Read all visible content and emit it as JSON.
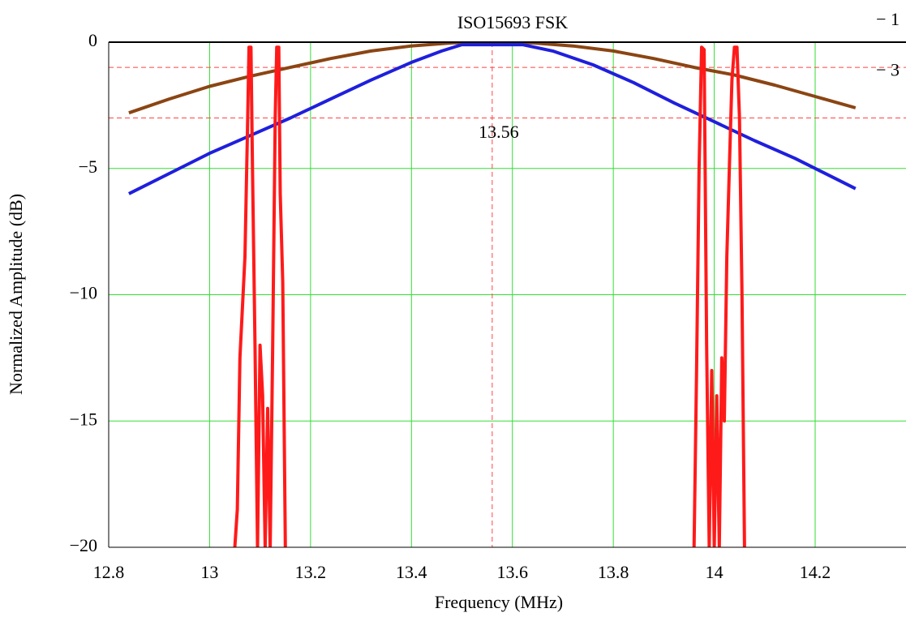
{
  "chart_data": {
    "type": "line",
    "title": "ISO15693 FSK",
    "x_label": "Frequency (MHz)",
    "y_label": "Normalized Amplitude (dB)",
    "xlim": [
      12.8,
      14.38
    ],
    "ylim": [
      -20,
      0
    ],
    "xticks": [
      12.8,
      13,
      13.2,
      13.4,
      13.6,
      13.8,
      14,
      14.2
    ],
    "yticks": [
      {
        "value": -20,
        "label": "−20"
      },
      {
        "value": -15,
        "label": "−15"
      },
      {
        "value": -10,
        "label": "−10"
      },
      {
        "value": -5,
        "label": "−5"
      },
      0
    ],
    "grid": true,
    "grid_color": "#33dd33",
    "markers": {
      "x": [
        {
          "value": 13.56,
          "label": "13.56"
        }
      ],
      "y": [
        {
          "value": -1,
          "label": "− 1"
        },
        {
          "value": -3,
          "label": "− 3"
        }
      ],
      "color": "#ff4444"
    },
    "series": [
      {
        "color": "#8b4513",
        "x": [
          12.84,
          12.92,
          13.0,
          13.08,
          13.16,
          13.24,
          13.32,
          13.4,
          13.48,
          13.56,
          13.64,
          13.72,
          13.8,
          13.88,
          13.96,
          14.04,
          14.12,
          14.2,
          14.28
        ],
        "values": [
          -2.8,
          -2.25,
          -1.75,
          -1.35,
          -1.0,
          -0.65,
          -0.35,
          -0.15,
          -0.03,
          0,
          -0.03,
          -0.15,
          -0.35,
          -0.65,
          -1.0,
          -1.3,
          -1.7,
          -2.15,
          -2.6
        ]
      },
      {
        "color": "#1f1fdd",
        "x": [
          12.84,
          12.92,
          13.0,
          13.08,
          13.16,
          13.24,
          13.32,
          13.4,
          13.46,
          13.5,
          13.62,
          13.68,
          13.76,
          13.84,
          13.92,
          14.0,
          14.08,
          14.16,
          14.24,
          14.28
        ],
        "values": [
          -6.0,
          -5.2,
          -4.4,
          -3.7,
          -3.0,
          -2.25,
          -1.5,
          -0.8,
          -0.35,
          -0.1,
          -0.1,
          -0.35,
          -0.9,
          -1.6,
          -2.4,
          -3.15,
          -3.9,
          -4.6,
          -5.4,
          -5.8
        ]
      },
      {
        "color": "#ff1a1a",
        "x": [
          13.05,
          13.055,
          13.06,
          13.07,
          13.075,
          13.078,
          13.082,
          13.085,
          13.09,
          13.095,
          13.1,
          13.105,
          13.11,
          13.115,
          13.12,
          13.125,
          13.13,
          13.133,
          13.137,
          13.14,
          13.145,
          13.15,
          13.5,
          13.96,
          13.965,
          13.97,
          13.975,
          13.98,
          13.985,
          13.99,
          13.995,
          14.0,
          14.005,
          14.01,
          14.015,
          14.02,
          14.025,
          14.03,
          14.035,
          14.04,
          14.045,
          14.05,
          14.055,
          14.06
        ],
        "values": [
          -20,
          -18.5,
          -12.5,
          -8.5,
          -3.5,
          -0.2,
          -0.2,
          -5,
          -12,
          -20,
          -12,
          -14,
          -20,
          -14.5,
          -20,
          -12,
          -3,
          -0.2,
          -0.2,
          -6,
          -9.5,
          -20,
          null,
          -20,
          -13,
          -5,
          -0.2,
          -0.3,
          -12,
          -20,
          -13,
          -20,
          -14,
          -20,
          -12.5,
          -15,
          -8.5,
          -5,
          -1.5,
          -0.2,
          -0.2,
          -3,
          -10,
          -20
        ]
      }
    ]
  }
}
